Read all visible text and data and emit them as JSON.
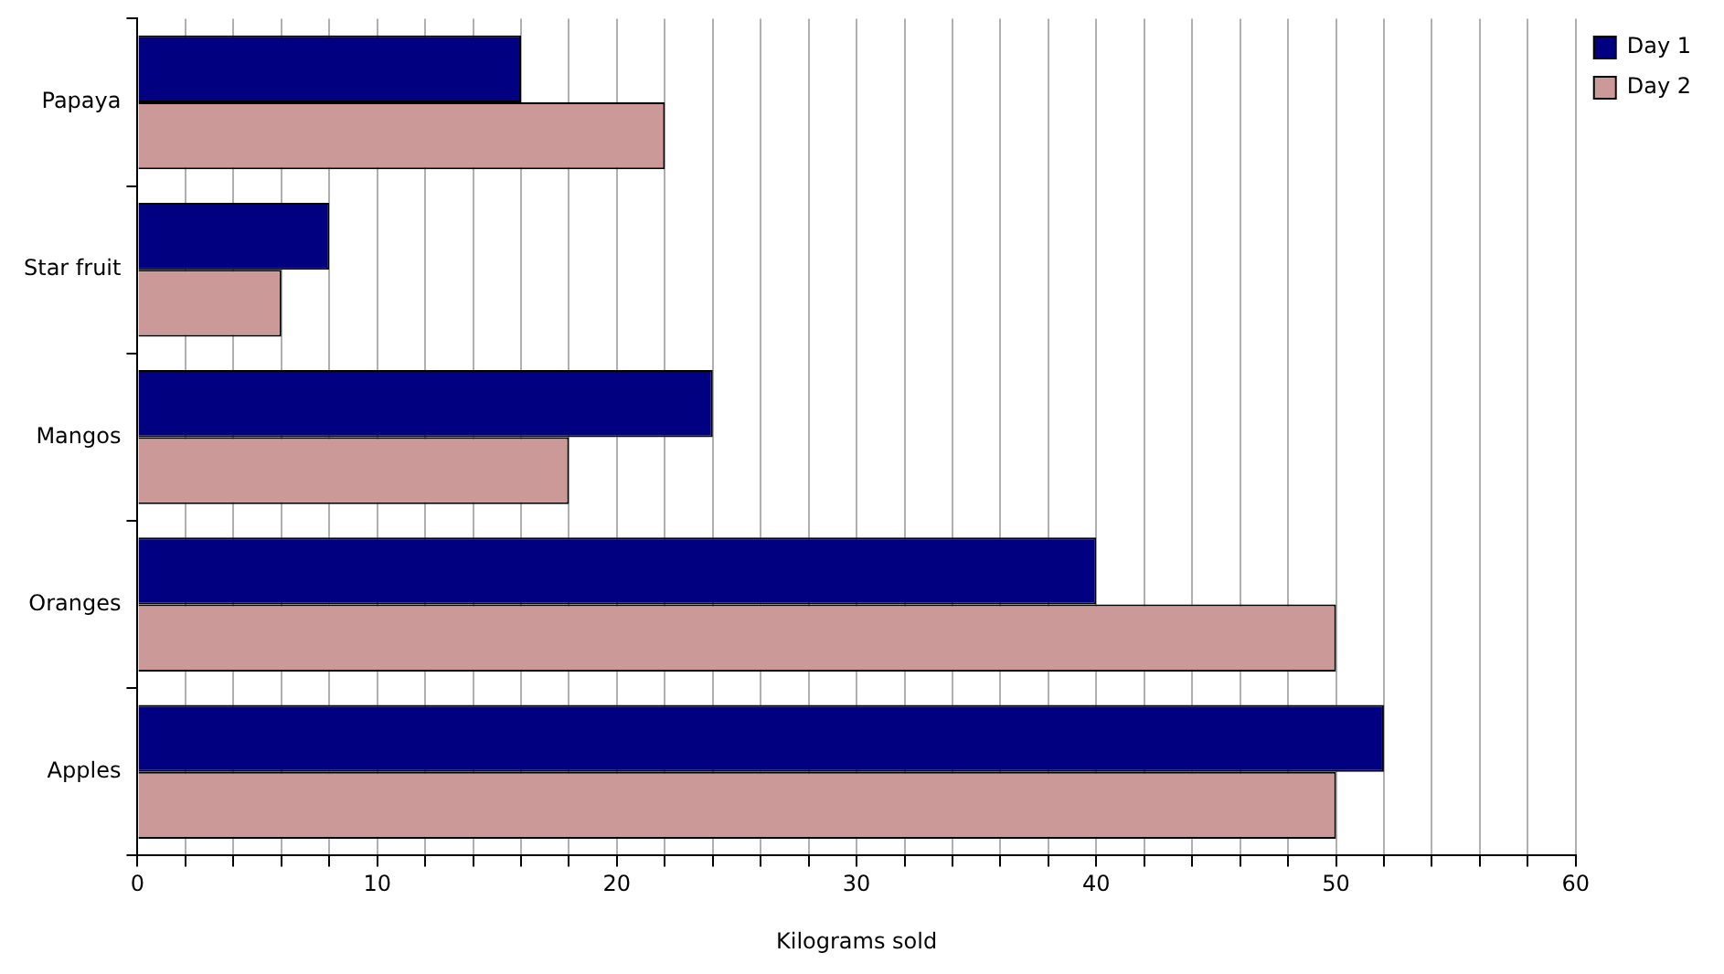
{
  "chart_data": {
    "type": "bar",
    "orientation": "horizontal",
    "xlabel": "Kilograms sold",
    "categories": [
      "Papaya",
      "Star fruit",
      "Mangos",
      "Oranges",
      "Apples"
    ],
    "series": [
      {
        "name": "Day 1",
        "color": "#000080",
        "values": [
          16,
          8,
          24,
          40,
          52
        ]
      },
      {
        "name": "Day 2",
        "color": "#cc9999",
        "values": [
          22,
          6,
          18,
          50,
          50
        ]
      }
    ],
    "xlim": [
      0,
      60
    ],
    "xticks": [
      0,
      {
        "value": 2,
        "label": null
      },
      {
        "value": 4,
        "label": null
      },
      {
        "value": 6,
        "label": null
      },
      {
        "value": 8,
        "label": null
      },
      10,
      {
        "value": 12,
        "label": null
      },
      {
        "value": 14,
        "label": null
      },
      {
        "value": 16,
        "label": null
      },
      {
        "value": 18,
        "label": null
      },
      20,
      {
        "value": 22,
        "label": null
      },
      {
        "value": 24,
        "label": null
      },
      {
        "value": 26,
        "label": null
      },
      {
        "value": 28,
        "label": null
      },
      30,
      {
        "value": 32,
        "label": null
      },
      {
        "value": 34,
        "label": null
      },
      {
        "value": 36,
        "label": null
      },
      {
        "value": 38,
        "label": null
      },
      40,
      {
        "value": 42,
        "label": null
      },
      {
        "value": 44,
        "label": null
      },
      {
        "value": 46,
        "label": null
      },
      {
        "value": 48,
        "label": null
      },
      50,
      {
        "value": 52,
        "label": null
      },
      {
        "value": 54,
        "label": null
      },
      {
        "value": 56,
        "label": null
      },
      {
        "value": 58,
        "label": null
      },
      60
    ],
    "grid": "x",
    "legend": "top right"
  }
}
